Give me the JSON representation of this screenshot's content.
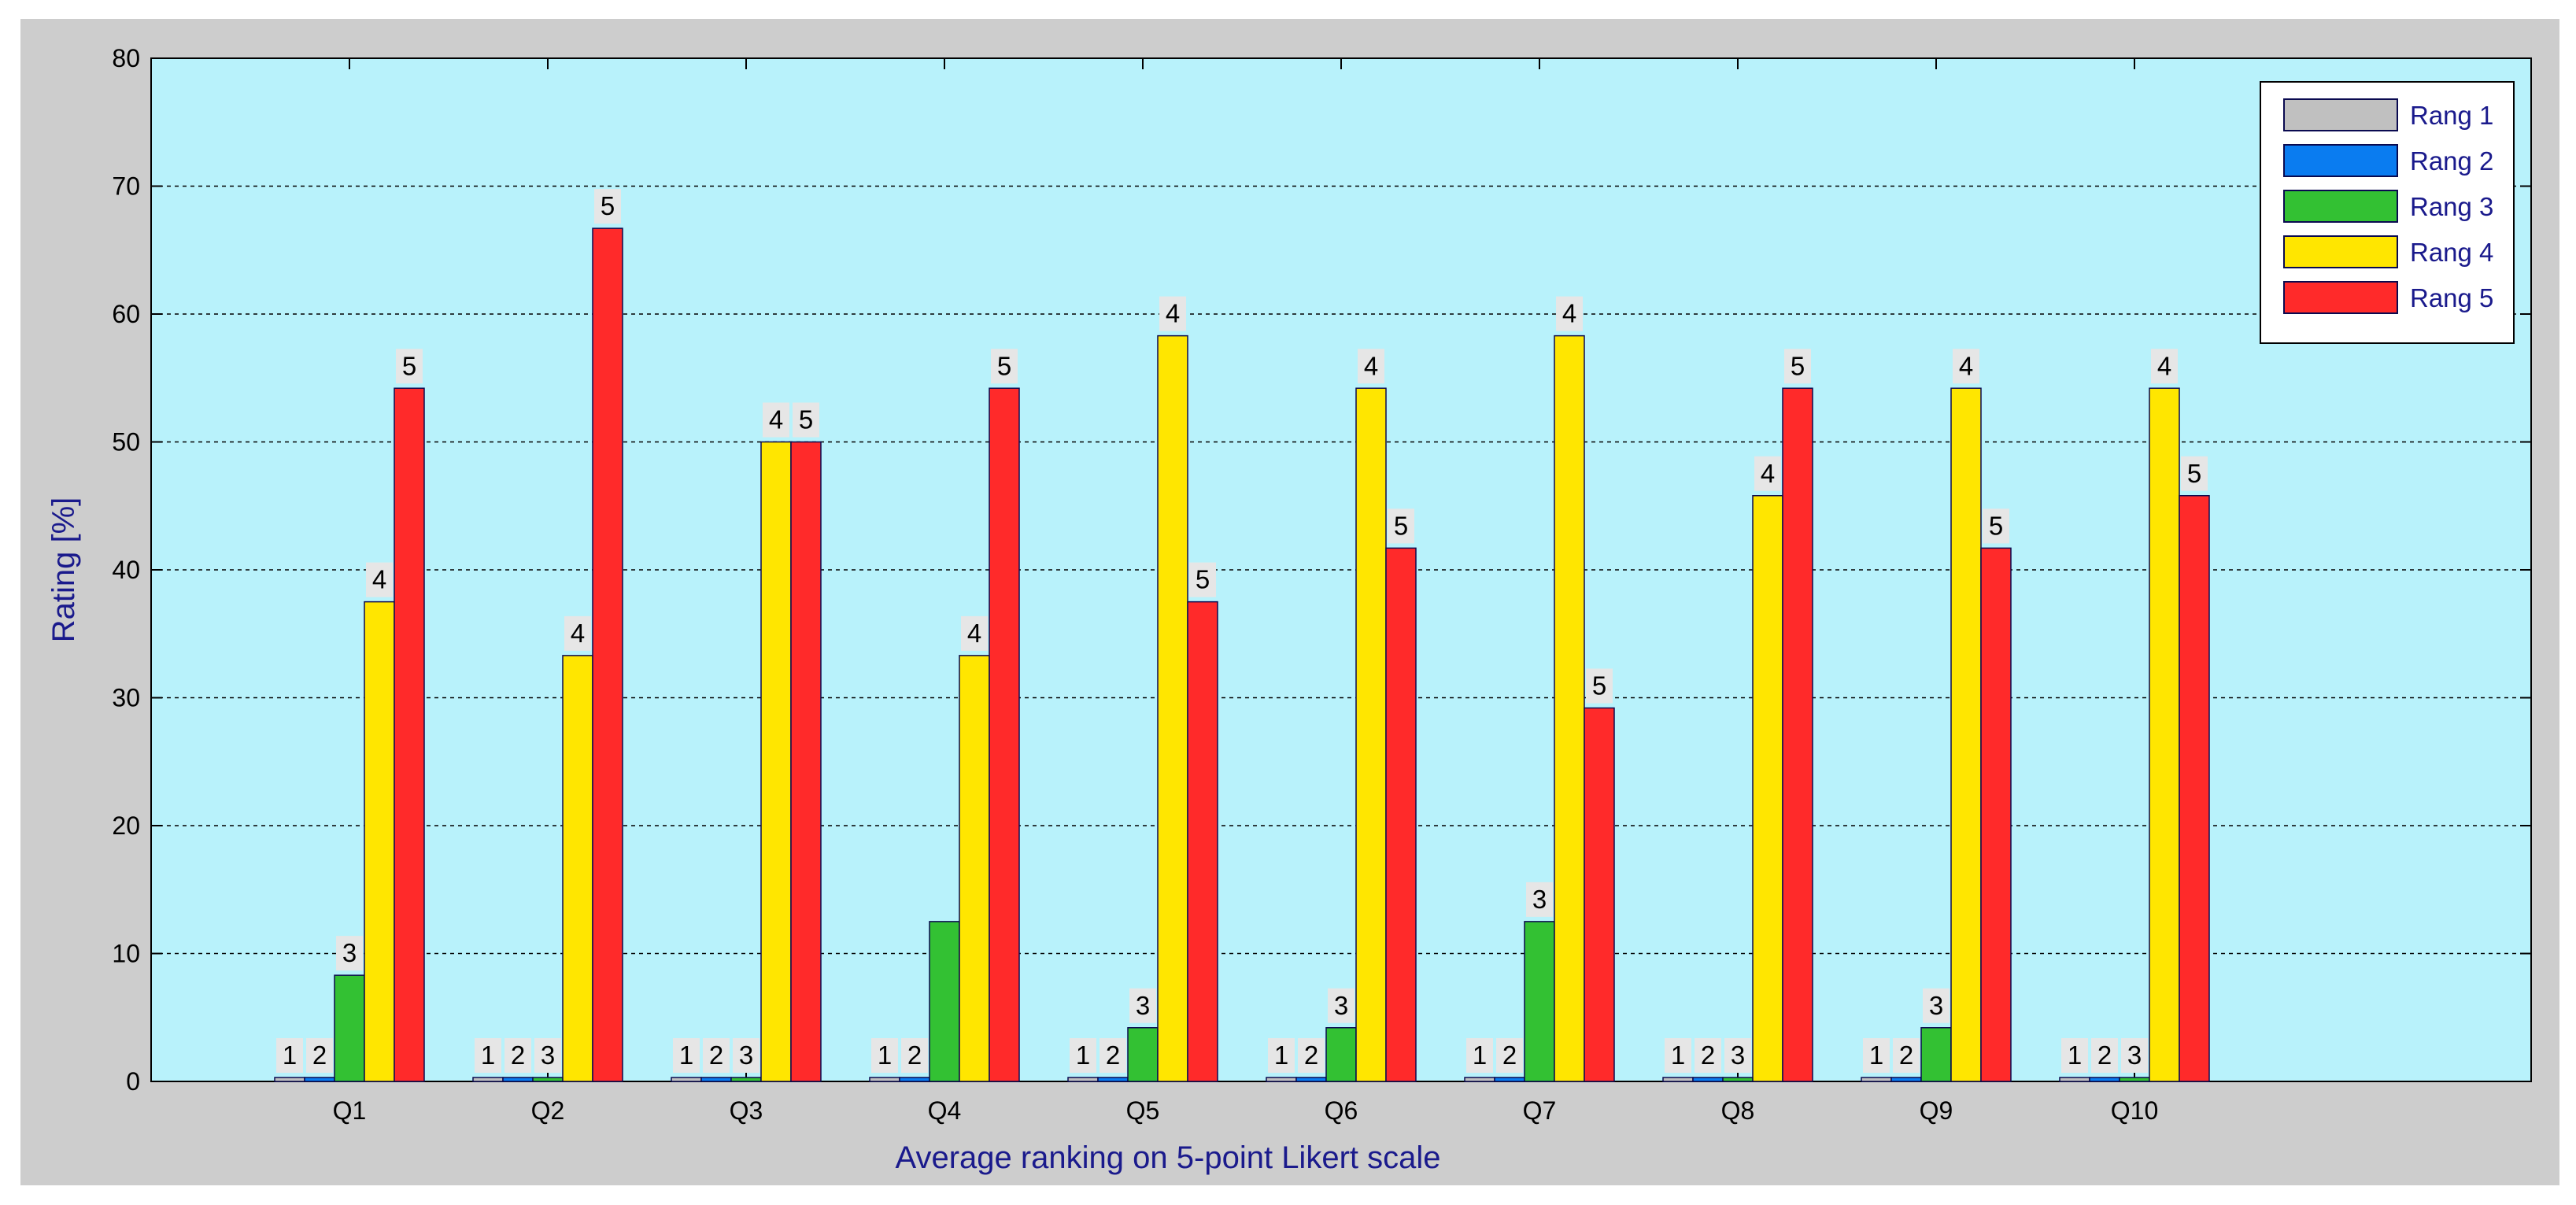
{
  "chart_data": {
    "type": "bar",
    "xlabel": "Average ranking on 5-point Likert scale",
    "ylabel": "Rating [%]",
    "ylim": [
      0,
      80
    ],
    "yticks": [
      0,
      10,
      20,
      30,
      40,
      50,
      60,
      70,
      80
    ],
    "categories": [
      "Q1",
      "Q2",
      "Q3",
      "Q4",
      "Q5",
      "Q6",
      "Q7",
      "Q8",
      "Q9",
      "Q10"
    ],
    "grid": "horizontal dashed",
    "legend_position": "top-right",
    "series": [
      {
        "name": "Rang 1",
        "label": "1",
        "color": "#c0c0c0",
        "values": [
          0,
          0,
          0,
          0,
          0,
          0,
          0,
          0,
          0,
          0
        ]
      },
      {
        "name": "Rang 2",
        "label": "2",
        "color": "#0a7cf0",
        "values": [
          0,
          0,
          0,
          0,
          0,
          0,
          0,
          0,
          0,
          0
        ]
      },
      {
        "name": "Rang 3",
        "label": "3",
        "color": "#33c133",
        "values": [
          8.3,
          0,
          0,
          12.5,
          4.2,
          4.2,
          12.5,
          0,
          4.2,
          0
        ]
      },
      {
        "name": "Rang 4",
        "label": "4",
        "color": "#ffe600",
        "values": [
          37.5,
          33.3,
          50,
          33.3,
          58.3,
          54.2,
          58.3,
          45.8,
          54.2,
          54.2
        ]
      },
      {
        "name": "Rang 5",
        "label": "5",
        "color": "#ff2a2a",
        "values": [
          54.2,
          66.7,
          50,
          54.2,
          37.5,
          41.7,
          29.2,
          54.2,
          41.7,
          45.8
        ]
      }
    ],
    "data_labels": [
      [
        "1",
        "2",
        "3",
        "4",
        "5"
      ],
      [
        "1",
        "2",
        "3",
        "4",
        "5"
      ],
      [
        "1",
        "2",
        "3",
        "4",
        "5"
      ],
      [
        "1",
        "2",
        "4",
        "5"
      ],
      [
        "1",
        "2",
        "3",
        "4",
        "5"
      ],
      [
        "1",
        "2",
        "3",
        "4",
        "5"
      ],
      [
        "1",
        "2",
        "3",
        "4",
        "5"
      ],
      [
        "1",
        "2",
        "3",
        "4",
        "5"
      ],
      [
        "1",
        "2",
        "3",
        "4",
        "5"
      ],
      [
        "1",
        "2",
        "3",
        "4",
        "5"
      ]
    ]
  },
  "colors": {
    "figure_background": "#cdcdcd",
    "plot_background": "#b8f2fb",
    "axis_text": "#1a1a8c",
    "label_box": "#e6e6e6"
  }
}
